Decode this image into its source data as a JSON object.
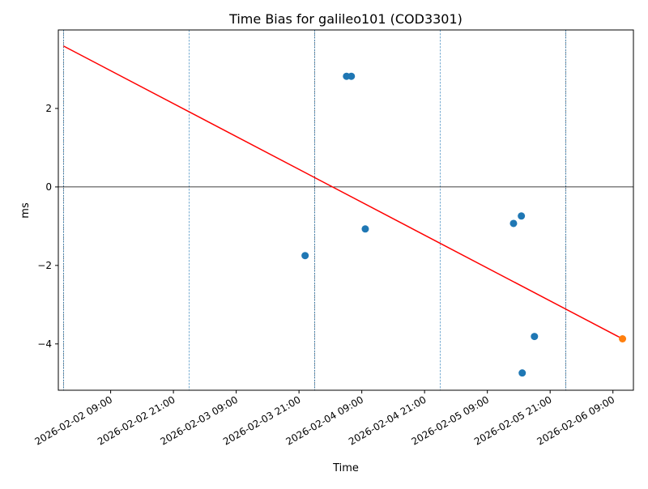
{
  "chart_data": {
    "type": "scatter",
    "title": "Time Bias for galileo101 (COD3301)",
    "xlabel": "Time",
    "ylabel": "ms",
    "xlim": [
      "2026-02-01 23:00",
      "2026-02-06 12:55"
    ],
    "ylim": [
      -5.18,
      4.0
    ],
    "grid": false,
    "x_ticks": [
      "2026-02-02 09:00",
      "2026-02-02 21:00",
      "2026-02-03 09:00",
      "2026-02-03 21:00",
      "2026-02-04 09:00",
      "2026-02-04 21:00",
      "2026-02-05 09:00",
      "2026-02-05 21:00",
      "2026-02-06 09:00"
    ],
    "y_ticks": [
      -4,
      -2,
      0,
      2
    ],
    "zero_line": 0,
    "day_boundaries": [
      {
        "x": "2026-02-02 00:00",
        "emphasis": true
      },
      {
        "x": "2026-02-03 00:00",
        "emphasis": false
      },
      {
        "x": "2026-02-04 00:00",
        "emphasis": true
      },
      {
        "x": "2026-02-05 00:00",
        "emphasis": false
      },
      {
        "x": "2026-02-06 00:00",
        "emphasis": true
      }
    ],
    "series": [
      {
        "type": "scatter",
        "color": "#1f77b4",
        "points": [
          {
            "x": "2026-02-03 22:10",
            "y": -1.75
          },
          {
            "x": "2026-02-04 06:05",
            "y": 2.82
          },
          {
            "x": "2026-02-04 07:00",
            "y": 2.82
          },
          {
            "x": "2026-02-04 09:40",
            "y": -1.07
          },
          {
            "x": "2026-02-05 14:00",
            "y": -0.93
          },
          {
            "x": "2026-02-05 15:30",
            "y": -0.74
          },
          {
            "x": "2026-02-05 15:40",
            "y": -4.74
          },
          {
            "x": "2026-02-05 18:00",
            "y": -3.81
          }
        ]
      },
      {
        "type": "scatter",
        "color": "#ff7f0e",
        "points": [
          {
            "x": "2026-02-06 10:50",
            "y": -3.87
          }
        ]
      },
      {
        "type": "line",
        "color": "#ff0000",
        "points": [
          {
            "x": "2026-02-02 00:00",
            "y": 3.59
          },
          {
            "x": "2026-02-06 10:50",
            "y": -3.87
          }
        ]
      }
    ]
  }
}
